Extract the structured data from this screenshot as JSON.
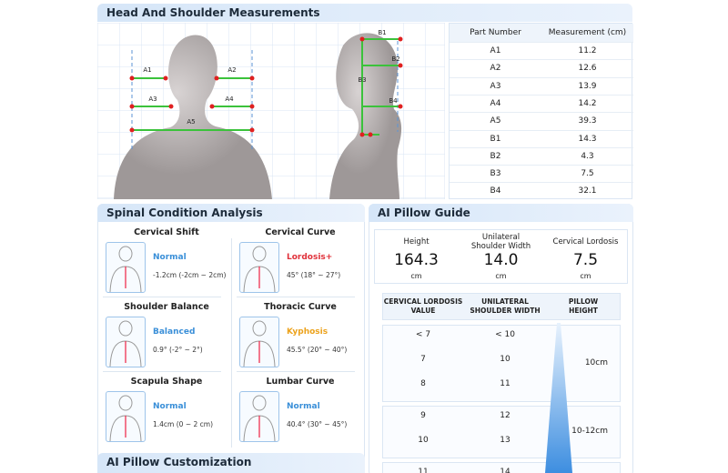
{
  "measurements": {
    "title": "Head And Shoulder Measurements",
    "table": {
      "headers": [
        "Part Number",
        "Measurement (cm)"
      ],
      "rows": [
        [
          "A1",
          "11.2"
        ],
        [
          "A2",
          "12.6"
        ],
        [
          "A3",
          "13.9"
        ],
        [
          "A4",
          "14.2"
        ],
        [
          "A5",
          "39.3"
        ],
        [
          "B1",
          "14.3"
        ],
        [
          "B2",
          "4.3"
        ],
        [
          "B3",
          "7.5"
        ],
        [
          "B4",
          "32.1"
        ]
      ]
    }
  },
  "spinal": {
    "title": "Spinal Condition Analysis",
    "items": [
      {
        "title": "Cervical Shift",
        "status": "Normal",
        "color": "#3a8fd8",
        "detail": "-1.2cm (-2cm ~ 2cm)"
      },
      {
        "title": "Cervical Curve",
        "status": "Lordosis+",
        "color": "#e0313a",
        "detail": "45° (18° ~ 27°)"
      },
      {
        "title": "Shoulder Balance",
        "status": "Balanced",
        "color": "#3a8fd8",
        "detail": "0.9° (-2° ~ 2°)"
      },
      {
        "title": "Thoracic Curve",
        "status": "Kyphosis",
        "color": "#eca21c",
        "detail": "45.5° (20° ~ 40°)"
      },
      {
        "title": "Scapula Shape",
        "status": "Normal",
        "color": "#3a8fd8",
        "detail": "1.4cm (0 ~ 2 cm)"
      },
      {
        "title": "Lumbar Curve",
        "status": "Normal",
        "color": "#3a8fd8",
        "detail": "40.4° (30° ~ 45°)"
      }
    ]
  },
  "guide": {
    "title": "AI Pillow Guide",
    "metrics": [
      {
        "label": "Height",
        "value": "164.3",
        "unit": "cm"
      },
      {
        "label": "Unilateral Shoulder Width",
        "value": "14.0",
        "unit": "cm"
      },
      {
        "label": "Cervical Lordosis",
        "value": "7.5",
        "unit": "cm"
      }
    ],
    "table": {
      "headers": [
        "CERVICAL LORDOSIS VALUE",
        "UNILATERAL SHOULDER WIDTH",
        "PILLOW HEIGHT"
      ],
      "groups": [
        {
          "rows": [
            [
              "< 7",
              "< 10"
            ],
            [
              "7",
              "10"
            ],
            [
              "8",
              "11"
            ]
          ],
          "height": "10cm"
        },
        {
          "rows": [
            [
              "9",
              "12"
            ],
            [
              "10",
              "13"
            ]
          ],
          "height": "10-12cm"
        },
        {
          "rows": [
            [
              "11",
              "14"
            ]
          ]
        }
      ]
    }
  },
  "customization": {
    "title": "AI Pillow Customization"
  }
}
